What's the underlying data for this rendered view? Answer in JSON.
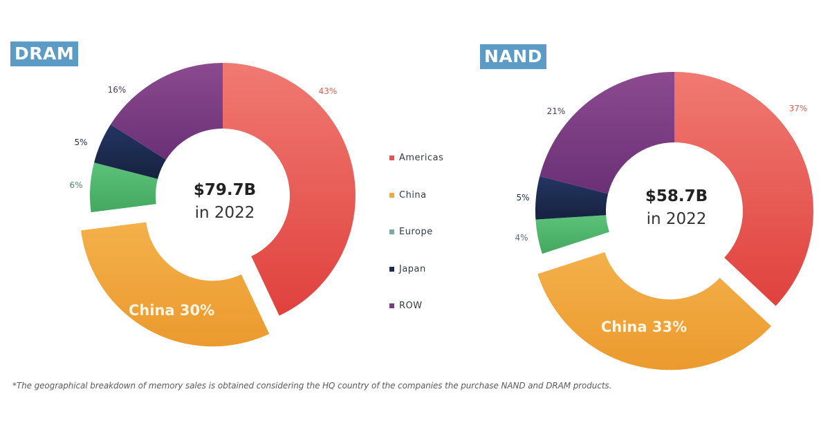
{
  "colors": {
    "Americas": "#e9534f",
    "China": "#f2a93b",
    "Europe": "#4fb56c",
    "Japan": "#1d2b52",
    "ROW": "#7a3b83",
    "badge": "#5b9bc6"
  },
  "legend": [
    {
      "label": "Americas",
      "color": "#e9534f"
    },
    {
      "label": "China",
      "color": "#f2a93b"
    },
    {
      "label": "Europe",
      "color": "#7fa6a8"
    },
    {
      "label": "Japan",
      "color": "#1d2b52"
    },
    {
      "label": "ROW",
      "color": "#7a3b83"
    }
  ],
  "footnote": "*The geographical breakdown of memory sales is obtained considering the HQ country of the companies the purchase NAND and DRAM products.",
  "chart_data": [
    {
      "type": "pie",
      "donut": true,
      "title": "DRAM",
      "center_value": "$79.7B",
      "center_sub": "in 2022",
      "exploded": "China",
      "slices": [
        {
          "name": "Americas",
          "value": 43,
          "label": "43%"
        },
        {
          "name": "China",
          "value": 30,
          "label": "China 30%"
        },
        {
          "name": "Europe",
          "value": 6,
          "label": "6%"
        },
        {
          "name": "Japan",
          "value": 5,
          "label": "5%"
        },
        {
          "name": "ROW",
          "value": 16,
          "label": "16%"
        }
      ]
    },
    {
      "type": "pie",
      "donut": true,
      "title": "NAND",
      "center_value": "$58.7B",
      "center_sub": "in 2022",
      "exploded": "China",
      "slices": [
        {
          "name": "Americas",
          "value": 37,
          "label": "37%"
        },
        {
          "name": "China",
          "value": 33,
          "label": "China 33%"
        },
        {
          "name": "Europe",
          "value": 4,
          "label": "4%"
        },
        {
          "name": "Japan",
          "value": 5,
          "label": "5%"
        },
        {
          "name": "ROW",
          "value": 21,
          "label": "21%"
        }
      ]
    }
  ]
}
